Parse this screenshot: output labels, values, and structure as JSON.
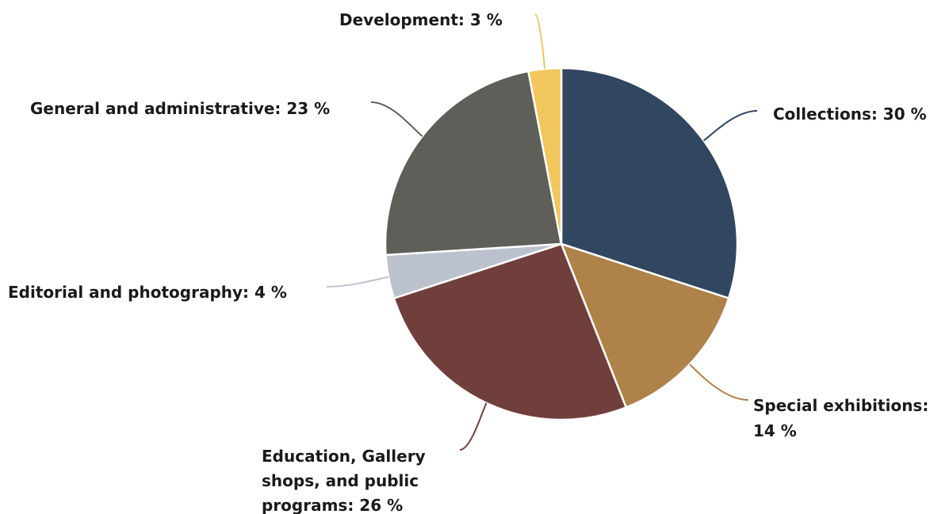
{
  "chart_data": {
    "type": "pie",
    "slices": [
      {
        "label": "Collections: 30 %",
        "name": "Collections",
        "value": 30,
        "color": "#31465F"
      },
      {
        "label": "Special exhibitions: 14 %",
        "name": "Special exhibitions",
        "value": 14,
        "color": "#AE8248"
      },
      {
        "label": "Education, Gallery shops, and public programs: 26 %",
        "name": "Education, Gallery shops, and public programs",
        "value": 26,
        "color": "#713F3B"
      },
      {
        "label": "Editorial and photography: 4 %",
        "name": "Editorial and photography",
        "value": 4,
        "color": "#BCC2CD"
      },
      {
        "label": "General and administrative: 23 %",
        "name": "General and administrative",
        "value": 23,
        "color": "#5E5F58"
      },
      {
        "label": "Development: 3 %",
        "name": "Development",
        "value": 3,
        "color": "#F0C65D"
      }
    ]
  }
}
